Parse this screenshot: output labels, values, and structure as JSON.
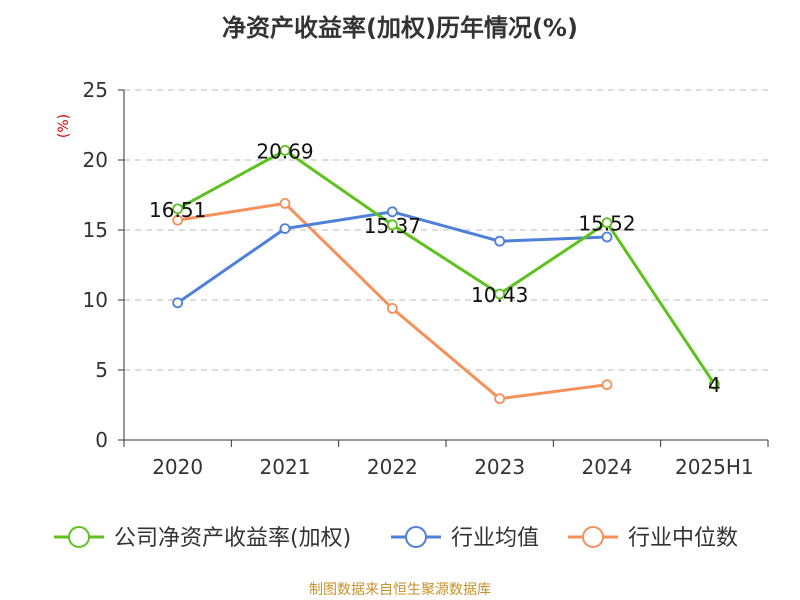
{
  "colors": {
    "series": [
      "#5dc21e",
      "#4e7fd9",
      "#f5905a"
    ],
    "unit_color": "#dd0000",
    "source_color": "#c8922a",
    "grid": "#bbbbbb",
    "axis": "#333333"
  },
  "chart_data": {
    "type": "line",
    "title": "净资产收益率(加权)历年情况(%)",
    "ylabel": "(%)",
    "ylim": [
      0,
      25
    ],
    "yticks": [
      0,
      5,
      10,
      15,
      20,
      25
    ],
    "grid": true,
    "legend_position": "bottom",
    "categories": [
      "2020",
      "2021",
      "2022",
      "2023",
      "2024",
      "2025H1"
    ],
    "series": [
      {
        "name": "公司净资产收益率(加权)",
        "values": [
          16.51,
          20.69,
          15.37,
          10.43,
          15.52,
          4
        ],
        "labels": [
          "16.51",
          "20.69",
          "15.37",
          "10.43",
          "15.52",
          "4"
        ]
      },
      {
        "name": "行业均值",
        "values": [
          9.8,
          15.1,
          16.3,
          14.2,
          14.5,
          null
        ]
      },
      {
        "name": "行业中位数",
        "values": [
          15.7,
          16.9,
          9.4,
          2.95,
          3.95,
          null
        ]
      }
    ]
  },
  "source": "制图数据来自恒生聚源数据库"
}
